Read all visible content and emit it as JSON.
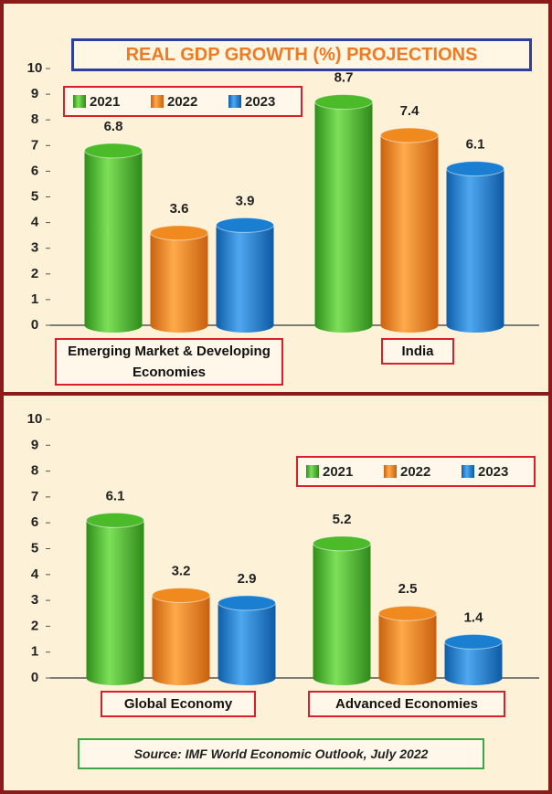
{
  "chart_data": [
    {
      "type": "bar",
      "title": "REAL GDP GROWTH (%) PROJECTIONS",
      "categories": [
        "Emerging Market & Developing Economies",
        "India"
      ],
      "series": [
        {
          "name": "2021",
          "color": "#4cbb2a",
          "values": [
            6.8,
            8.7
          ]
        },
        {
          "name": "2022",
          "color": "#f08a1e",
          "values": [
            3.6,
            7.4
          ]
        },
        {
          "name": "2023",
          "color": "#1a7fd0",
          "values": [
            3.9,
            6.1
          ]
        }
      ],
      "ylim": [
        0,
        10
      ],
      "yticks": [
        0,
        1,
        2,
        3,
        4,
        5,
        6,
        7,
        8,
        9,
        10
      ],
      "legend": "top-left"
    },
    {
      "type": "bar",
      "categories": [
        "Global Economy",
        "Advanced Economies"
      ],
      "series": [
        {
          "name": "2021",
          "color": "#4cbb2a",
          "values": [
            6.1,
            5.2
          ]
        },
        {
          "name": "2022",
          "color": "#f08a1e",
          "values": [
            3.2,
            2.5
          ]
        },
        {
          "name": "2023",
          "color": "#1a7fd0",
          "values": [
            2.9,
            1.4
          ]
        }
      ],
      "ylim": [
        0,
        10
      ],
      "yticks": [
        0,
        1,
        2,
        3,
        4,
        5,
        6,
        7,
        8,
        9,
        10
      ],
      "legend": "top-right"
    }
  ],
  "source": "Source: IMF World Economic Outlook, July 2022"
}
